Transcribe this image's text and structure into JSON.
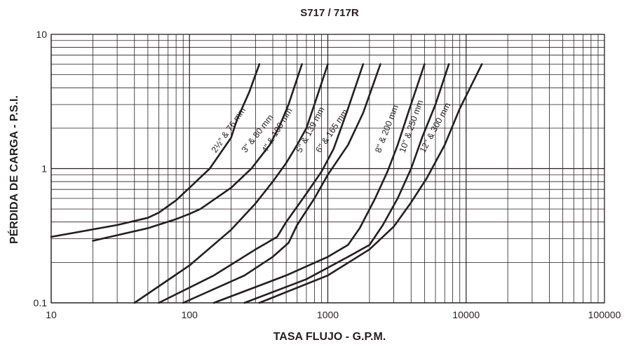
{
  "chart_data": {
    "type": "line",
    "title": "S717 / 717R",
    "xlabel": "TASA FLUJO - G.P.M.",
    "ylabel": "PÉRDIDA DE CARGA - P.S.I.",
    "x_scale": "log",
    "y_scale": "log",
    "xlim": [
      10,
      100000
    ],
    "ylim": [
      0.1,
      10
    ],
    "x_ticks": [
      {
        "value": 10,
        "label": "10"
      },
      {
        "value": 100,
        "label": "100"
      },
      {
        "value": 1000,
        "label": "1000"
      },
      {
        "value": 10000,
        "label": "10000"
      },
      {
        "value": 100000,
        "label": "100000"
      }
    ],
    "y_ticks": [
      {
        "value": 0.1,
        "label": "0.1"
      },
      {
        "value": 1,
        "label": "1"
      },
      {
        "value": 10,
        "label": "10"
      }
    ],
    "grid": true,
    "line_color": "#231f20",
    "series": [
      {
        "name": "2½\" & 76 mm",
        "label_at": [
          155,
          1.3
        ],
        "points": [
          [
            10,
            0.31
          ],
          [
            30,
            0.38
          ],
          [
            50,
            0.43
          ],
          [
            60,
            0.47
          ],
          [
            80,
            0.58
          ],
          [
            100,
            0.72
          ],
          [
            140,
            1.0
          ],
          [
            200,
            1.7
          ],
          [
            220,
            2.3
          ],
          [
            270,
            3.7
          ],
          [
            320,
            6.0
          ]
        ]
      },
      {
        "name": "3\" & 80 mm",
        "label_at": [
          255,
          1.3
        ],
        "points": [
          [
            20,
            0.29
          ],
          [
            50,
            0.36
          ],
          [
            80,
            0.42
          ],
          [
            100,
            0.46
          ],
          [
            120,
            0.5
          ],
          [
            200,
            0.72
          ],
          [
            280,
            1.0
          ],
          [
            380,
            1.5
          ],
          [
            450,
            2.1
          ],
          [
            520,
            3.0
          ],
          [
            650,
            6.0
          ]
        ]
      },
      {
        "name": "4\" & 100 mm",
        "label_at": [
          360,
          1.3
        ],
        "points": [
          [
            40,
            0.1
          ],
          [
            100,
            0.19
          ],
          [
            200,
            0.35
          ],
          [
            300,
            0.55
          ],
          [
            400,
            0.8
          ],
          [
            500,
            1.1
          ],
          [
            600,
            1.5
          ],
          [
            700,
            2.0
          ],
          [
            800,
            3.0
          ],
          [
            1000,
            6.0
          ]
        ]
      },
      {
        "name": "5\" & 139 mm",
        "label_at": [
          640,
          1.3
        ],
        "points": [
          [
            60,
            0.1
          ],
          [
            150,
            0.16
          ],
          [
            300,
            0.25
          ],
          [
            430,
            0.31
          ],
          [
            500,
            0.4
          ],
          [
            700,
            0.65
          ],
          [
            900,
            0.95
          ],
          [
            1100,
            1.4
          ],
          [
            1400,
            2.8
          ],
          [
            1800,
            6.0
          ]
        ]
      },
      {
        "name": "6\" & 165 mm",
        "label_at": [
          880,
          1.3
        ],
        "points": [
          [
            90,
            0.1
          ],
          [
            250,
            0.16
          ],
          [
            400,
            0.22
          ],
          [
            520,
            0.28
          ],
          [
            600,
            0.38
          ],
          [
            800,
            0.6
          ],
          [
            1000,
            0.9
          ],
          [
            1400,
            1.5
          ],
          [
            1800,
            2.6
          ],
          [
            2400,
            6.0
          ]
        ]
      },
      {
        "name": "8\" & 200 mm",
        "label_at": [
          2400,
          1.3
        ],
        "points": [
          [
            150,
            0.1
          ],
          [
            500,
            0.16
          ],
          [
            1000,
            0.22
          ],
          [
            1400,
            0.27
          ],
          [
            1700,
            0.36
          ],
          [
            2200,
            0.6
          ],
          [
            2700,
            0.95
          ],
          [
            3200,
            1.5
          ],
          [
            3900,
            2.8
          ],
          [
            5000,
            6.0
          ]
        ]
      },
      {
        "name": "10\" & 250 mm",
        "label_at": [
          3600,
          1.3
        ],
        "points": [
          [
            250,
            0.1
          ],
          [
            700,
            0.15
          ],
          [
            1400,
            0.22
          ],
          [
            2000,
            0.27
          ],
          [
            2500,
            0.38
          ],
          [
            3200,
            0.6
          ],
          [
            4000,
            1.0
          ],
          [
            4800,
            1.7
          ],
          [
            6000,
            3.0
          ],
          [
            7500,
            6.0
          ]
        ]
      },
      {
        "name": "12\" & 300 mm",
        "label_at": [
          5000,
          1.3
        ],
        "points": [
          [
            320,
            0.1
          ],
          [
            1000,
            0.16
          ],
          [
            2000,
            0.25
          ],
          [
            3000,
            0.37
          ],
          [
            4000,
            0.56
          ],
          [
            5200,
            0.85
          ],
          [
            7000,
            1.5
          ],
          [
            9000,
            2.8
          ],
          [
            13000,
            6.0
          ]
        ]
      }
    ]
  }
}
